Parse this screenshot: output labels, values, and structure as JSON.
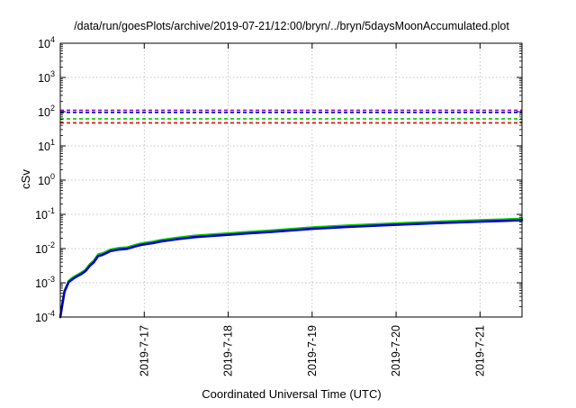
{
  "chart_data": {
    "type": "line",
    "title": "/data/run/goesPlots/archive/2019-07-21/12:00/bryn/../bryn/5daysMoonAccumulated.plot",
    "xlabel": "Coordinated Universal Time (UTC)",
    "ylabel": "cSv",
    "y_scale": "log",
    "ylim_exponents": [
      -4,
      4
    ],
    "y_ticks": [
      {
        "base": "10",
        "exp": "-4",
        "exp_value": -4
      },
      {
        "base": "10",
        "exp": "-3",
        "exp_value": -3
      },
      {
        "base": "10",
        "exp": "-2",
        "exp_value": -2
      },
      {
        "base": "10",
        "exp": "-1",
        "exp_value": -1
      },
      {
        "base": "10",
        "exp": "0",
        "exp_value": 0
      },
      {
        "base": "10",
        "exp": "1",
        "exp_value": 1
      },
      {
        "base": "10",
        "exp": "2",
        "exp_value": 2
      },
      {
        "base": "10",
        "exp": "3",
        "exp_value": 3
      },
      {
        "base": "10",
        "exp": "4",
        "exp_value": 4
      }
    ],
    "xlim_days": [
      0.0,
      5.5
    ],
    "x_ticks": [
      {
        "label": "2019-7-17",
        "day": 1.0
      },
      {
        "label": "2019-7-18",
        "day": 2.0
      },
      {
        "label": "2019-7-19",
        "day": 3.0
      },
      {
        "label": "2019-7-20",
        "day": 4.0
      },
      {
        "label": "2019-7-21",
        "day": 5.0
      }
    ],
    "grid": true,
    "thresholds": [
      {
        "value": 110,
        "color": "#9400d3",
        "dashed": true
      },
      {
        "value": 95,
        "color": "#0000cd",
        "dashed": true
      },
      {
        "value": 62,
        "color": "#00cc00",
        "dashed": true
      },
      {
        "value": 47,
        "color": "#ee0000",
        "dashed": true
      }
    ],
    "series": [
      {
        "color": "#00cc00",
        "x": [
          0.0,
          0.03,
          0.05,
          0.1,
          0.15,
          0.2,
          0.25,
          0.3,
          0.35,
          0.4,
          0.45,
          0.5,
          0.55,
          0.6,
          0.7,
          0.8,
          0.9,
          0.95,
          1.0,
          1.1,
          1.2,
          1.4,
          1.6,
          1.8,
          2.0,
          2.2,
          2.5,
          2.7,
          3.0,
          3.3,
          3.6,
          4.0,
          4.3,
          4.6,
          5.0,
          5.3,
          5.5
        ],
        "values": [
          0.0001,
          0.0003,
          0.0006,
          0.00115,
          0.00145,
          0.0017,
          0.002,
          0.0024,
          0.0035,
          0.0045,
          0.0068,
          0.0073,
          0.0083,
          0.0095,
          0.0105,
          0.011,
          0.013,
          0.014,
          0.0148,
          0.016,
          0.018,
          0.021,
          0.024,
          0.026,
          0.028,
          0.0305,
          0.034,
          0.037,
          0.042,
          0.046,
          0.05,
          0.055,
          0.059,
          0.063,
          0.068,
          0.072,
          0.075
        ]
      },
      {
        "color": "#0000cd",
        "x": [
          0.0,
          0.03,
          0.05,
          0.1,
          0.15,
          0.2,
          0.25,
          0.3,
          0.35,
          0.4,
          0.45,
          0.5,
          0.55,
          0.6,
          0.7,
          0.8,
          0.9,
          0.95,
          1.0,
          1.1,
          1.2,
          1.4,
          1.6,
          1.8,
          2.0,
          2.2,
          2.5,
          2.7,
          3.0,
          3.3,
          3.6,
          4.0,
          4.3,
          4.6,
          5.0,
          5.3,
          5.5
        ],
        "values": [
          0.0001,
          0.00028,
          0.00055,
          0.00105,
          0.0013,
          0.00155,
          0.0018,
          0.0022,
          0.0031,
          0.004,
          0.006,
          0.0065,
          0.0074,
          0.0085,
          0.0094,
          0.0099,
          0.0117,
          0.0126,
          0.0133,
          0.0144,
          0.0162,
          0.0189,
          0.0216,
          0.0234,
          0.0252,
          0.0274,
          0.0306,
          0.0333,
          0.0378,
          0.0414,
          0.045,
          0.0495,
          0.0531,
          0.0567,
          0.0612,
          0.0648,
          0.0675
        ]
      }
    ]
  }
}
